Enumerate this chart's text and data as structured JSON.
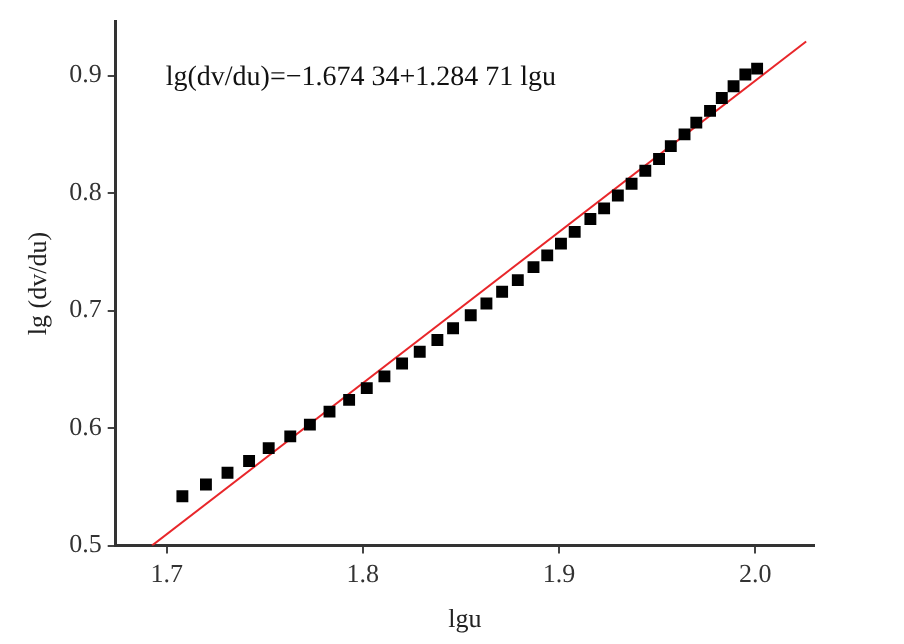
{
  "chart_data": {
    "type": "scatter",
    "xlabel": "lgu",
    "ylabel": "lg (dv/du)",
    "annotations": [
      "lg(dv/du)=−1.674 34+1.284 71 lgu"
    ],
    "xlim": [
      1.674,
      2.03
    ],
    "xticks": [
      1.7,
      1.8,
      1.9,
      {
        "value": 2,
        "label": "2.0"
      }
    ],
    "ylim": [
      0.5,
      0.946
    ],
    "yticks": [
      0.5,
      0.6,
      0.7,
      0.8,
      0.9
    ],
    "grid": false,
    "legend": false,
    "series": [
      {
        "type": "scatter",
        "marker": "square",
        "color": "#000000",
        "x": [
          1.708,
          1.72,
          1.731,
          1.742,
          1.752,
          1.763,
          1.773,
          1.783,
          1.793,
          1.802,
          1.811,
          1.82,
          1.829,
          1.838,
          1.846,
          1.855,
          1.863,
          1.871,
          1.879,
          1.887,
          1.894,
          1.901,
          1.908,
          1.916,
          1.923,
          1.93,
          1.937,
          1.944,
          1.951,
          1.957,
          1.964,
          1.97,
          1.977,
          1.983,
          1.989,
          1.995,
          2.001
        ],
        "values": [
          0.542,
          0.552,
          0.562,
          0.572,
          0.583,
          0.593,
          0.603,
          0.614,
          0.624,
          0.634,
          0.644,
          0.655,
          0.665,
          0.675,
          0.685,
          0.696,
          0.706,
          0.716,
          0.726,
          0.737,
          0.747,
          0.757,
          0.767,
          0.778,
          0.787,
          0.798,
          0.808,
          0.819,
          0.829,
          0.84,
          0.85,
          0.86,
          0.87,
          0.881,
          0.891,
          0.901,
          0.906
        ]
      },
      {
        "type": "line",
        "marker": "none",
        "line_style": "solid",
        "color": "#e8262a",
        "x": [
          1.6925,
          2.026
        ],
        "values": [
          0.5,
          0.929
        ]
      }
    ]
  }
}
